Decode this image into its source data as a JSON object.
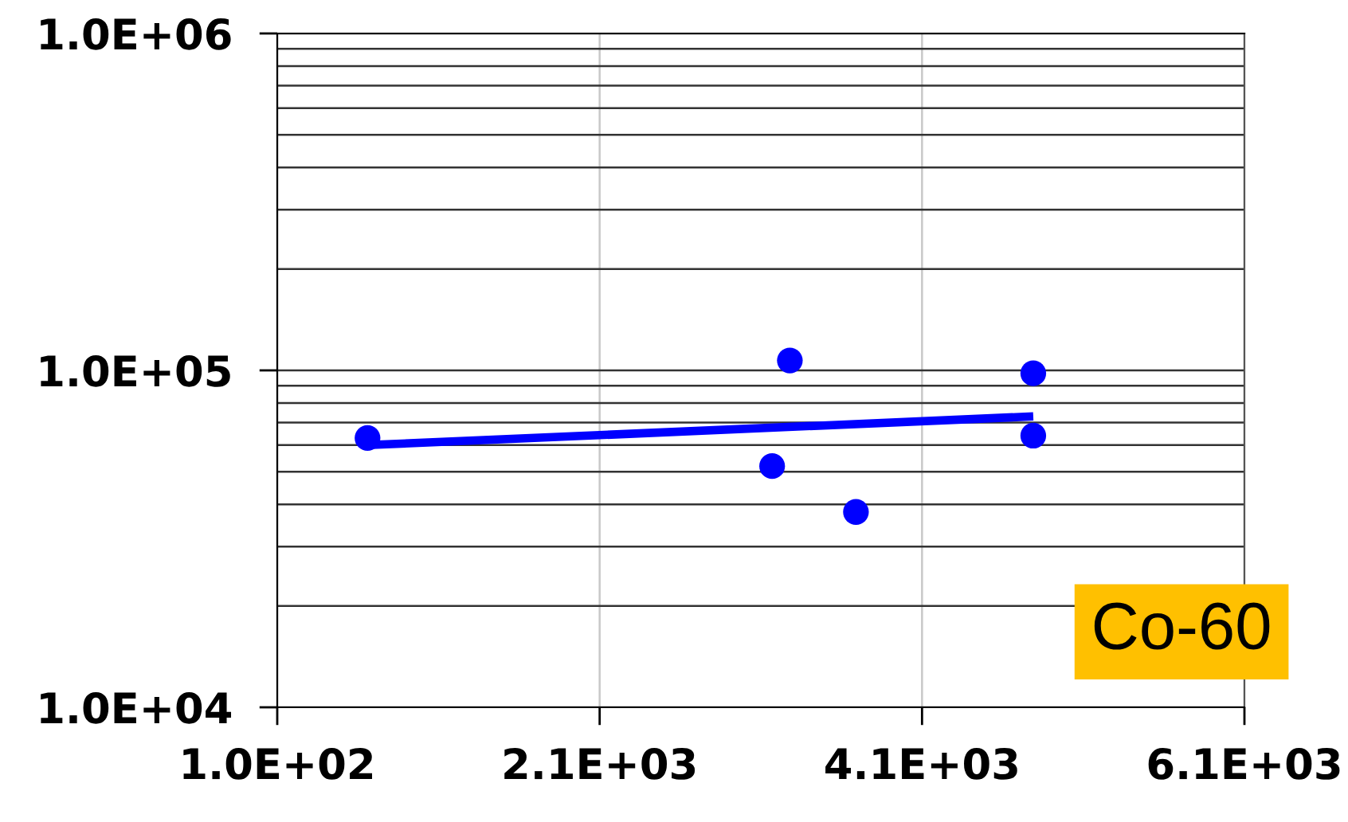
{
  "chart_data": {
    "type": "scatter",
    "series": [
      {
        "color": "#0000ff",
        "marker": "circle",
        "x": [
          660,
          3280,
          3170,
          3690,
          4790,
          4790
        ],
        "values": [
          63000,
          107000,
          52000,
          38000,
          98000,
          64000
        ]
      },
      {
        "type": "line",
        "color": "#0000ff",
        "x": [
          660,
          4790
        ],
        "values": [
          60000,
          73000
        ]
      }
    ],
    "log": "y",
    "xlim": [
      100,
      6100
    ],
    "xticks": [
      {
        "value": 100,
        "label": "1.0E+02"
      },
      {
        "value": 2100,
        "label": "2.1E+03"
      },
      {
        "value": 4100,
        "label": "4.1E+03"
      },
      {
        "value": 6100,
        "label": "6.1E+03"
      }
    ],
    "ylim": [
      10000,
      1000000
    ],
    "yticks": [
      {
        "value": 10000,
        "label": "1.0E+04"
      },
      {
        "value": 100000,
        "label": "1.0E+05"
      },
      {
        "value": 1000000,
        "label": "1.0E+06"
      }
    ],
    "grid": true,
    "annotations": [
      "Co-60"
    ]
  }
}
